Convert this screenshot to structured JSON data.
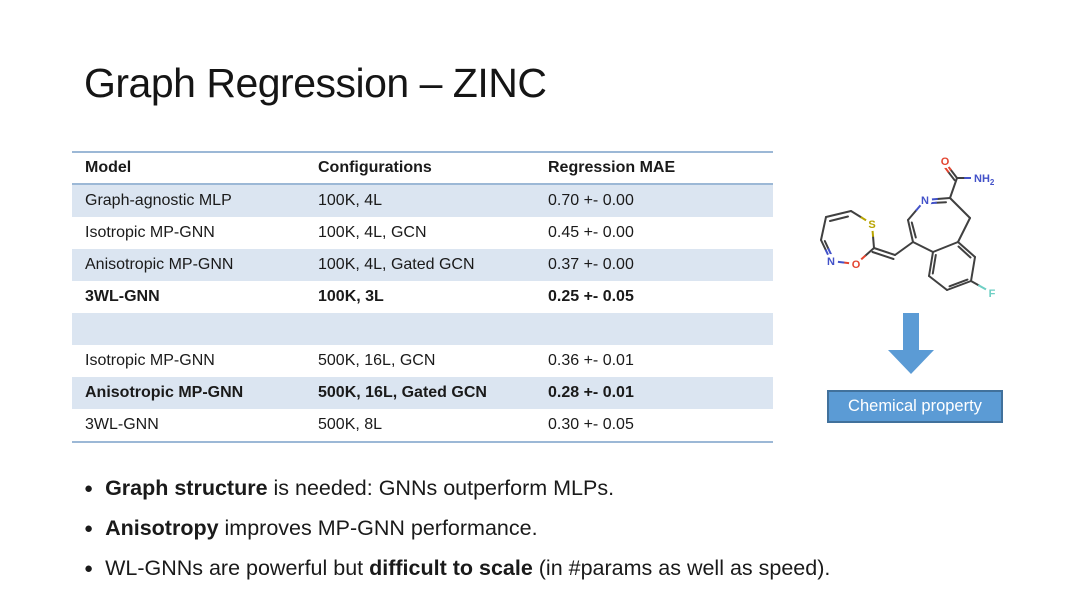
{
  "title": "Graph Regression – ZINC",
  "table": {
    "headers": [
      "Model",
      "Configurations",
      "Regression MAE"
    ],
    "rows": [
      {
        "cells": [
          "Graph-agnostic MLP",
          "100K, 4L",
          "0.70 +- 0.00"
        ],
        "bold": false,
        "banded": true
      },
      {
        "cells": [
          "Isotropic MP-GNN",
          "100K, 4L, GCN",
          "0.45 +- 0.00"
        ],
        "bold": false,
        "banded": false
      },
      {
        "cells": [
          "Anisotropic MP-GNN",
          "100K, 4L, Gated GCN",
          "0.37 +- 0.00"
        ],
        "bold": false,
        "banded": true
      },
      {
        "cells": [
          "3WL-GNN",
          "100K, 3L",
          "0.25 +- 0.05"
        ],
        "bold": true,
        "banded": false
      },
      {
        "cells": [
          "",
          "",
          ""
        ],
        "bold": false,
        "banded": true
      },
      {
        "cells": [
          "Isotropic MP-GNN",
          "500K, 16L, GCN",
          "0.36 +- 0.01"
        ],
        "bold": false,
        "banded": false
      },
      {
        "cells": [
          "Anisotropic MP-GNN",
          "500K, 16L, Gated GCN",
          "0.28 +- 0.01"
        ],
        "bold": true,
        "banded": true
      },
      {
        "cells": [
          "3WL-GNN",
          "500K, 8L",
          "0.30 +- 0.05"
        ],
        "bold": false,
        "banded": false
      }
    ]
  },
  "molecule": {
    "description": "ZINC molecule graph (benzazepine carboxamide with oxathiazepine ring)",
    "labels": {
      "s": "S",
      "o_ring": "O",
      "n_ring": "N",
      "n_azepine": "N",
      "o_amide": "O",
      "nh2": "NH",
      "nh2_sub": "2",
      "f": "F"
    }
  },
  "diagram": {
    "caption": "Chemical property"
  },
  "bullets": [
    {
      "segments": [
        {
          "text": "Graph structure",
          "bold": true
        },
        {
          "text": " is needed: GNNs outperform MLPs.",
          "bold": false
        }
      ]
    },
    {
      "segments": [
        {
          "text": "Anisotropy",
          "bold": true
        },
        {
          "text": " improves MP-GNN performance.",
          "bold": false
        }
      ]
    },
    {
      "segments": [
        {
          "text": "WL-GNNs are powerful but ",
          "bold": false
        },
        {
          "text": "difficult to scale",
          "bold": true
        },
        {
          "text": " (in #params as well as speed).",
          "bold": false
        }
      ]
    }
  ],
  "colors": {
    "accent_blue": "#5b9bd5",
    "box_border": "#41719c",
    "row_band": "#dbe5f1",
    "table_border": "#9cb8d6",
    "atom_sulfur": "#b8a400",
    "atom_oxygen": "#e3442f",
    "atom_nitrogen": "#4352c9",
    "atom_fluorine": "#6ecfc4",
    "bond": "#404040"
  }
}
